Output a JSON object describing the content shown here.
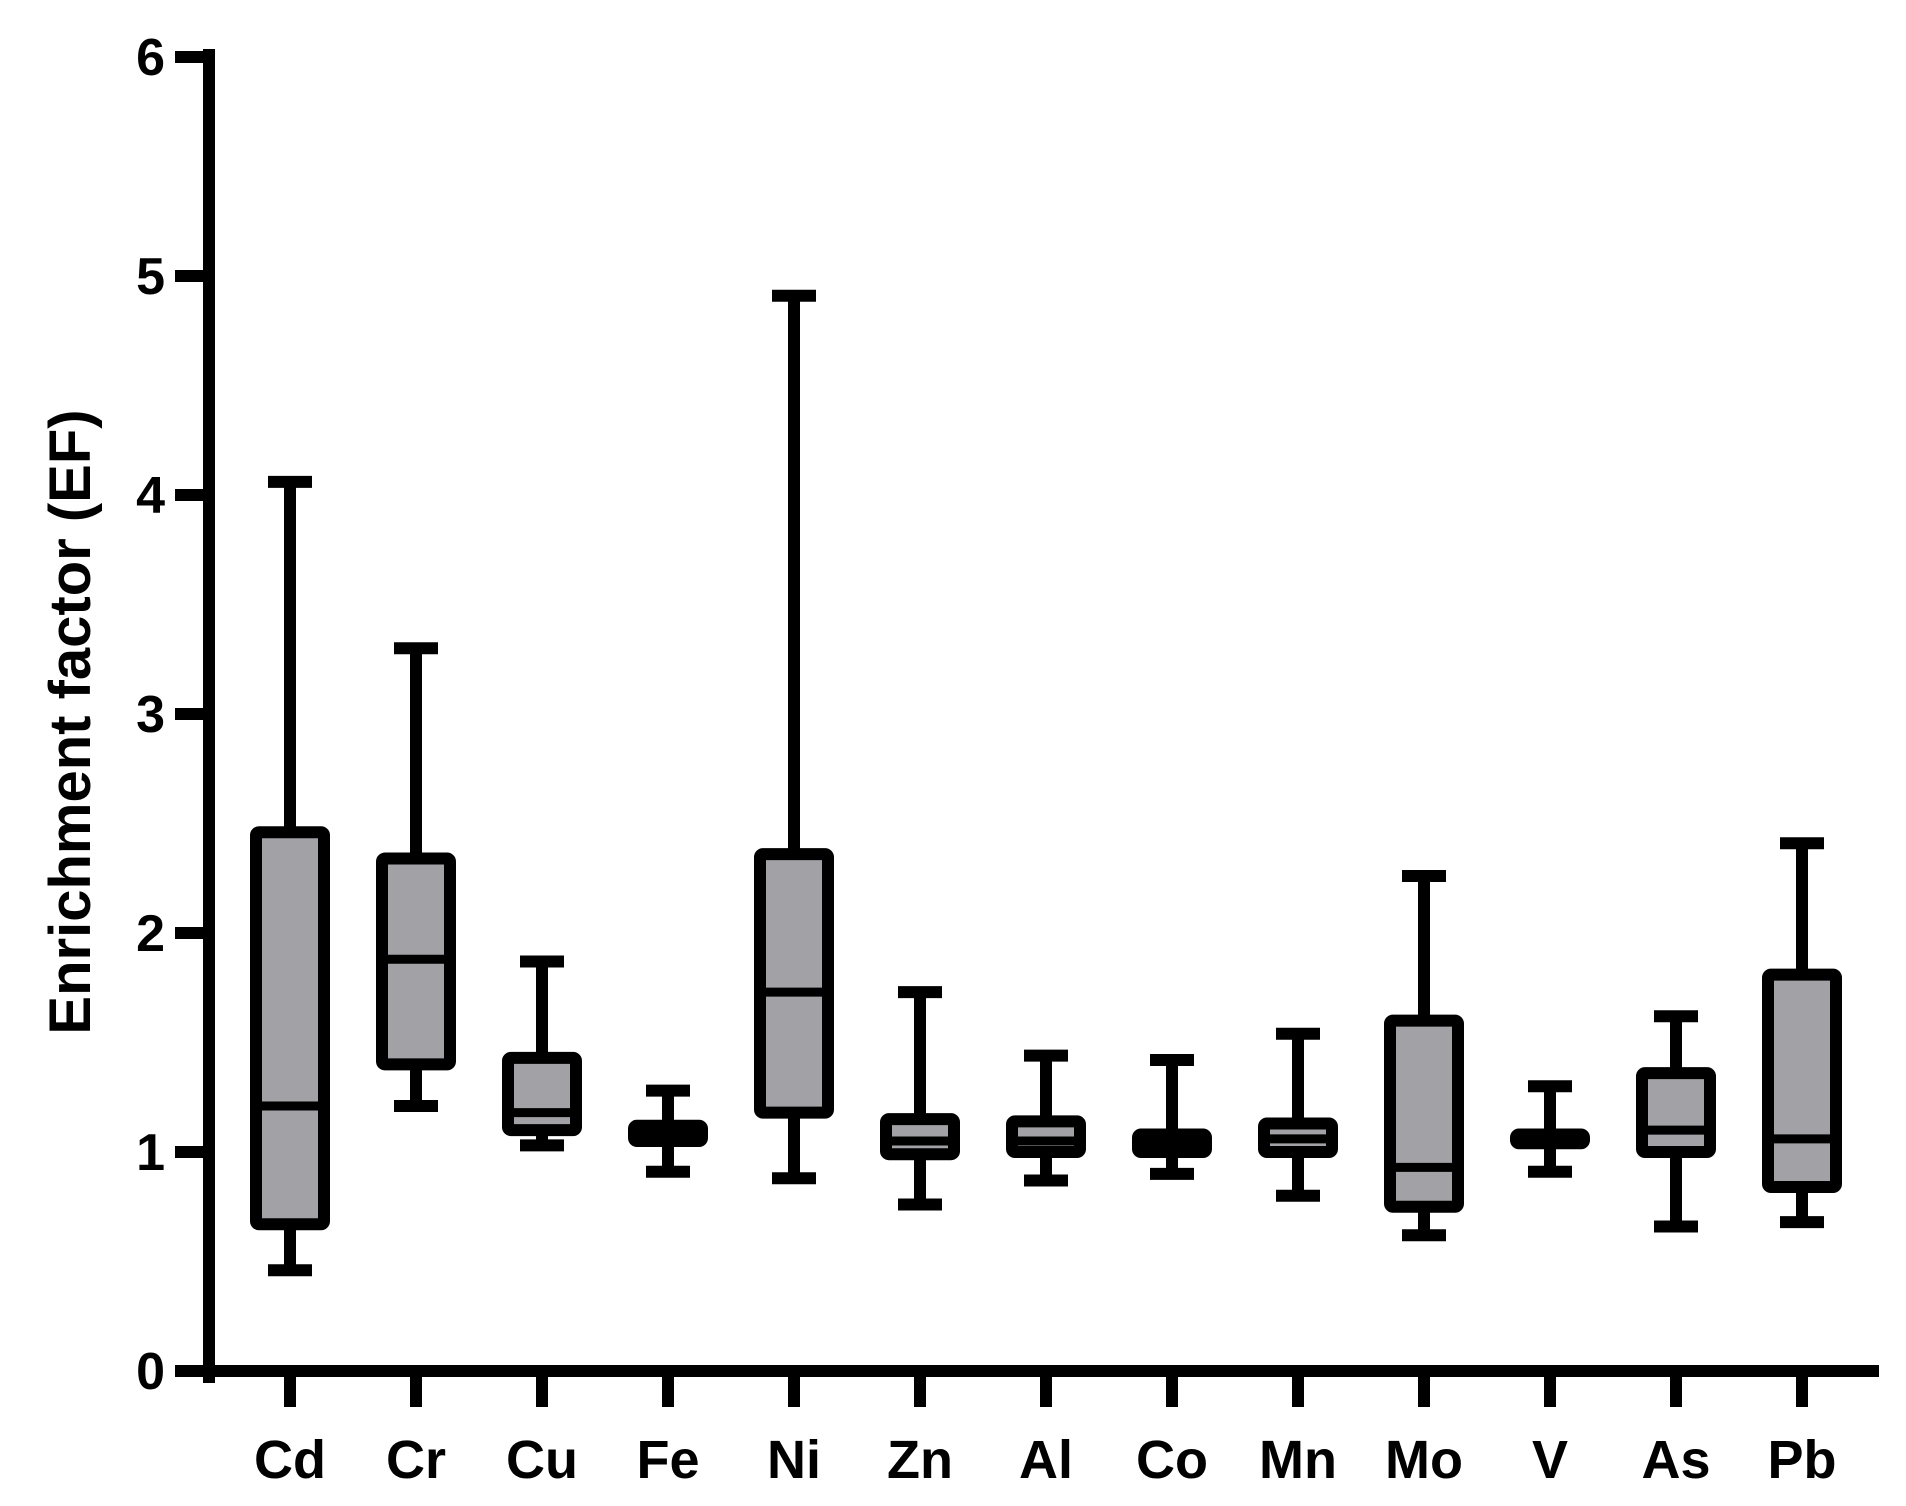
{
  "chart_data": {
    "type": "box",
    "ylabel": "Enrichment factor (EF)",
    "xlabel": "",
    "ylim": [
      0,
      6
    ],
    "yticks": [
      "0",
      "1",
      "2",
      "3",
      "4",
      "5",
      "6"
    ],
    "categories": [
      "Cd",
      "Cr",
      "Cu",
      "Fe",
      "Ni",
      "Zn",
      "Al",
      "Co",
      "Mn",
      "Mo",
      "V",
      "As",
      "Pb"
    ],
    "boxes": [
      {
        "min": 0.46,
        "q1": 0.67,
        "median": 1.21,
        "q3": 2.46,
        "max": 4.06
      },
      {
        "min": 1.21,
        "q1": 1.4,
        "median": 1.88,
        "q3": 2.34,
        "max": 3.3
      },
      {
        "min": 1.03,
        "q1": 1.1,
        "median": 1.18,
        "q3": 1.43,
        "max": 1.87
      },
      {
        "min": 0.91,
        "q1": 1.05,
        "median": 1.09,
        "q3": 1.12,
        "max": 1.28
      },
      {
        "min": 0.88,
        "q1": 1.18,
        "median": 1.73,
        "q3": 2.36,
        "max": 4.91
      },
      {
        "min": 0.76,
        "q1": 0.99,
        "median": 1.05,
        "q3": 1.15,
        "max": 1.73
      },
      {
        "min": 0.87,
        "q1": 1.0,
        "median": 1.05,
        "q3": 1.14,
        "max": 1.44
      },
      {
        "min": 0.9,
        "q1": 1.0,
        "median": 1.04,
        "q3": 1.08,
        "max": 1.42
      },
      {
        "min": 0.8,
        "q1": 1.0,
        "median": 1.06,
        "q3": 1.13,
        "max": 1.54
      },
      {
        "min": 0.62,
        "q1": 0.75,
        "median": 0.93,
        "q3": 1.6,
        "max": 2.26
      },
      {
        "min": 0.91,
        "q1": 1.04,
        "median": 1.06,
        "q3": 1.08,
        "max": 1.3
      },
      {
        "min": 0.66,
        "q1": 1.0,
        "median": 1.1,
        "q3": 1.36,
        "max": 1.62
      },
      {
        "min": 0.68,
        "q1": 0.84,
        "median": 1.06,
        "q3": 1.81,
        "max": 2.41
      }
    ],
    "box_fill": "#a2a1a6",
    "line_color": "#000000",
    "grid": false,
    "legend": "none"
  }
}
